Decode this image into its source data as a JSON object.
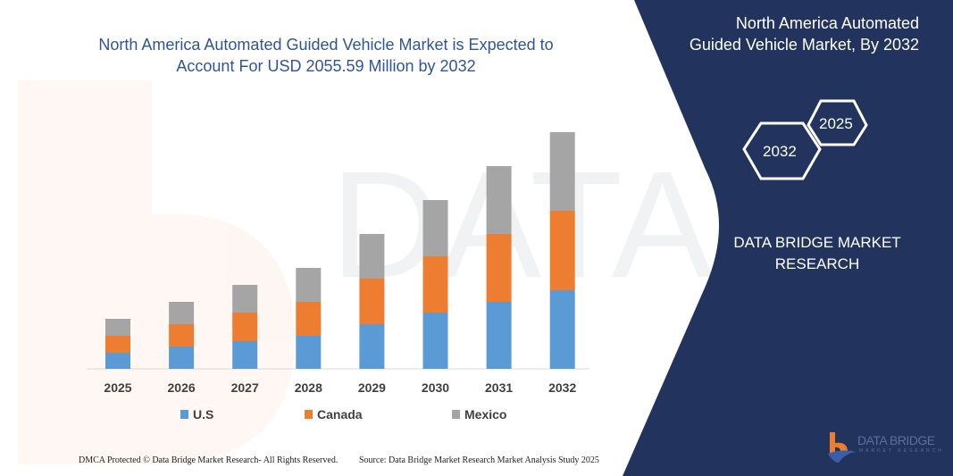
{
  "header": {
    "title": "North America Automated Guided Vehicle Market is Expected to Account For USD 2055.59 Million by 2032"
  },
  "side_panel": {
    "title": "North America Automated Guided Vehicle Market, By 2032",
    "hex_years": [
      "2025",
      "2032"
    ],
    "brand": "DATA BRIDGE MARKET RESEARCH",
    "logo_text": "DATA BRIDGE",
    "logo_subtext": "MARKET RESEARCH"
  },
  "footer": {
    "left": "DMCA Protected © Data Bridge Market Research- All Rights Reserved.",
    "right": "Source: Data Bridge Market Research  Market Analysis Study 2025"
  },
  "colors": {
    "us": "#5b9bd5",
    "canada": "#ed7d31",
    "mexico": "#a5a5a5",
    "panel": "#22335e",
    "title": "#2f5597"
  },
  "chart_data": {
    "type": "bar",
    "stacked": true,
    "title": "North America Automated Guided Vehicle Market is Expected to Account For USD 2055.59 Million by 2032",
    "xlabel": "",
    "ylabel": "",
    "y_axis_shown": false,
    "grid": false,
    "legend_placement": "bottom",
    "categories": [
      "2025",
      "2026",
      "2027",
      "2028",
      "2029",
      "2030",
      "2031",
      "2032"
    ],
    "series": [
      {
        "name": "U.S",
        "color": "#5b9bd5",
        "values": [
          18,
          25,
          31,
          37,
          50,
          63,
          75,
          88
        ]
      },
      {
        "name": "Canada",
        "color": "#ed7d31",
        "values": [
          19,
          25,
          32,
          38,
          51,
          63,
          76,
          89
        ]
      },
      {
        "name": "Mexico",
        "color": "#a5a5a5",
        "values": [
          19,
          25,
          31,
          38,
          50,
          63,
          76,
          88
        ]
      }
    ],
    "ylim": [
      0,
      280
    ]
  }
}
